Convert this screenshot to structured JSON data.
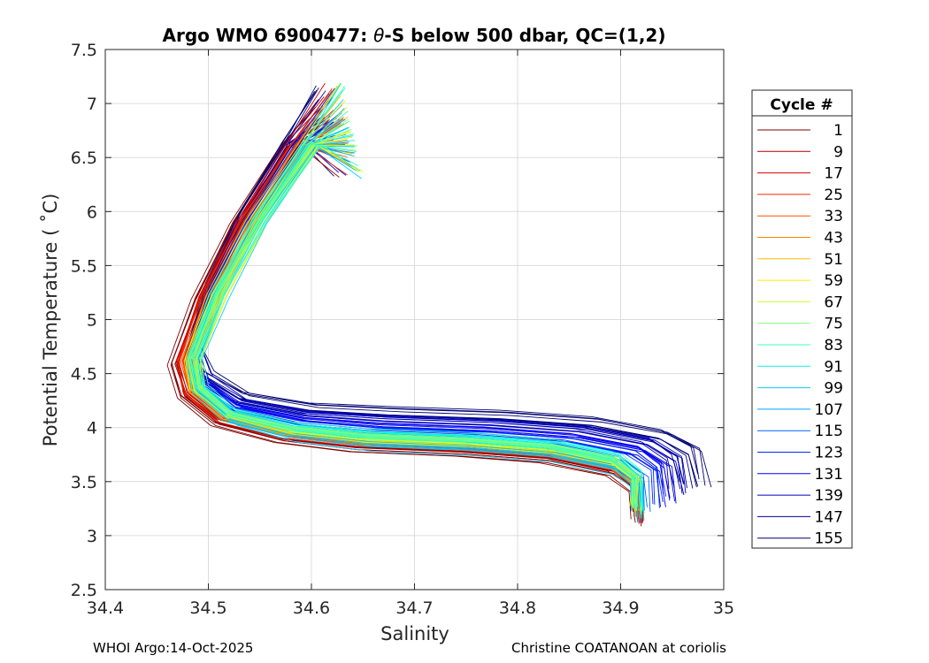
{
  "chart_data": {
    "type": "line",
    "title": "Argo WMO 6900477: θ-S below 500 dbar,  QC=(1,2)",
    "title_parts": {
      "prefix": "Argo WMO 6900477: ",
      "symbol": "θ",
      "suffix": "-S below 500 dbar,  QC=(1,2)"
    },
    "xlabel": "Salinity",
    "ylabel": "Potential Temperature ( ˚C)",
    "xlim": [
      34.4,
      35.0
    ],
    "ylim": [
      2.5,
      7.5
    ],
    "xticks": [
      "34.4",
      "34.5",
      "34.6",
      "34.7",
      "34.8",
      "34.9",
      "35"
    ],
    "yticks": [
      "2.5",
      "3",
      "3.5",
      "4",
      "4.5",
      "5",
      "5.5",
      "6",
      "6.5",
      "7",
      "7.5"
    ],
    "grid": true,
    "legend": {
      "title": "Cycle #",
      "placement": "outside-right",
      "entries": [
        {
          "label": "1",
          "color": "#800000"
        },
        {
          "label": "9",
          "color": "#a80000"
        },
        {
          "label": "17",
          "color": "#d40000"
        },
        {
          "label": "25",
          "color": "#ef2a00"
        },
        {
          "label": "33",
          "color": "#ff5200"
        },
        {
          "label": "43",
          "color": "#ff8400"
        },
        {
          "label": "51",
          "color": "#ffb800"
        },
        {
          "label": "59",
          "color": "#ffe800"
        },
        {
          "label": "67",
          "color": "#c6ff30"
        },
        {
          "label": "75",
          "color": "#7fff7a"
        },
        {
          "label": "83",
          "color": "#3dffbd"
        },
        {
          "label": "91",
          "color": "#10f0e8"
        },
        {
          "label": "99",
          "color": "#00d0ff"
        },
        {
          "label": "107",
          "color": "#00a0ff"
        },
        {
          "label": "115",
          "color": "#0066ff"
        },
        {
          "label": "123",
          "color": "#0028ff"
        },
        {
          "label": "131",
          "color": "#0000f0"
        },
        {
          "label": "139",
          "color": "#0000c0"
        },
        {
          "label": "147",
          "color": "#000096"
        },
        {
          "label": "155",
          "color": "#000070"
        }
      ]
    },
    "series_shape": {
      "note": "representative theta-S profile shape (salinity, potential temperature)",
      "S": [
        34.64,
        34.6,
        34.55,
        34.51,
        34.485,
        34.49,
        34.52,
        34.58,
        34.65,
        34.75,
        34.83,
        34.89,
        34.91,
        34.91
      ],
      "T": [
        7.2,
        6.6,
        5.9,
        5.2,
        4.6,
        4.3,
        4.05,
        3.9,
        3.82,
        3.78,
        3.72,
        3.6,
        3.45,
        3.2
      ]
    }
  },
  "footer": {
    "left": "WHOI Argo:14-Oct-2025",
    "right": "Christine COATANOAN at coriolis"
  }
}
